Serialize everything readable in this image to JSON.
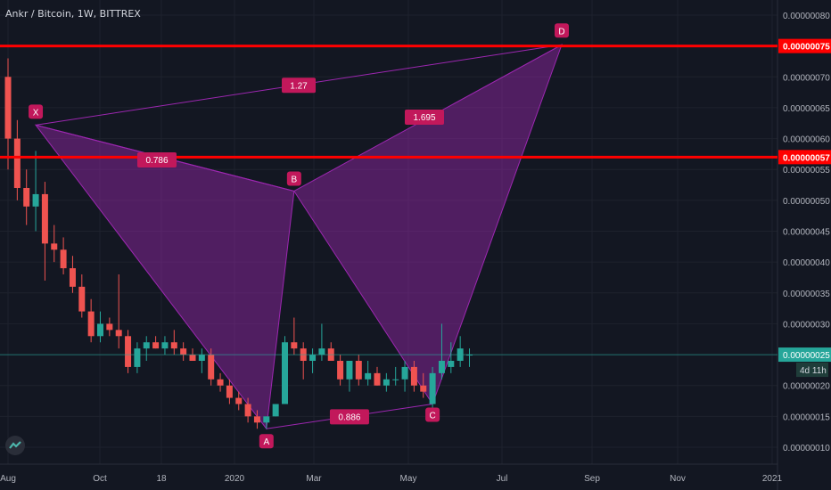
{
  "chart_data": {
    "type": "candlestick",
    "symbol_label": "Ankr / Bitcoin, 1W, BITTREX",
    "price_axis": {
      "ticks": [
        "0.00000080",
        "0.00000075",
        "0.00000070",
        "0.00000065",
        "0.00000060",
        "0.00000055",
        "0.00000050",
        "0.00000045",
        "0.00000040",
        "0.00000035",
        "0.00000030",
        "0.00000025",
        "0.00000020",
        "0.00000015",
        "0.00000010"
      ]
    },
    "time_axis": {
      "ticks": [
        "Aug",
        "Oct",
        "18",
        "2020",
        "Mar",
        "May",
        "Jul",
        "Sep",
        "Nov",
        "2021"
      ]
    },
    "horizontal_lines": [
      {
        "price": 7.5e-07,
        "label": "0.00000075",
        "color": "#ff0000"
      },
      {
        "price": 5.7e-07,
        "label": "0.00000057",
        "color": "#ff0000"
      }
    ],
    "current_price": {
      "price": 2.5e-07,
      "label": "0.00000025",
      "countdown": "4d 11h",
      "color": "#26a69a"
    },
    "pattern": {
      "color": "#9c27b0",
      "points": [
        {
          "name": "X",
          "bar": 3,
          "price": 6.22e-07
        },
        {
          "name": "A",
          "bar": 28,
          "price": 1.3e-07
        },
        {
          "name": "B",
          "bar": 31,
          "price": 5.15e-07
        },
        {
          "name": "C",
          "bar": 46,
          "price": 1.7e-07
        },
        {
          "name": "D",
          "bar": 60,
          "price": 7.52e-07
        }
      ],
      "ratios": [
        {
          "label": "0.786",
          "between": [
            "X",
            "B"
          ]
        },
        {
          "label": "1.27",
          "between": [
            "X",
            "D"
          ]
        },
        {
          "label": "1.695",
          "between": [
            "B",
            "D"
          ]
        },
        {
          "label": "0.886",
          "between": [
            "A",
            "C"
          ]
        }
      ]
    },
    "candles": [
      [
        7e-07,
        7.3e-07,
        5.5e-07,
        6e-07
      ],
      [
        6e-07,
        6.3e-07,
        5e-07,
        5.2e-07
      ],
      [
        5.2e-07,
        5.5e-07,
        4.6e-07,
        4.9e-07
      ],
      [
        4.9e-07,
        5.8e-07,
        4.5e-07,
        5.1e-07
      ],
      [
        5.1e-07,
        5.3e-07,
        3.7e-07,
        4.3e-07
      ],
      [
        4.3e-07,
        4.6e-07,
        4e-07,
        4.2e-07
      ],
      [
        4.2e-07,
        4.4e-07,
        3.8e-07,
        3.9e-07
      ],
      [
        3.9e-07,
        4.1e-07,
        3.5e-07,
        3.6e-07
      ],
      [
        3.6e-07,
        3.8e-07,
        3.1e-07,
        3.2e-07
      ],
      [
        3.2e-07,
        3.4e-07,
        2.7e-07,
        2.8e-07
      ],
      [
        2.8e-07,
        3.2e-07,
        2.7e-07,
        3e-07
      ],
      [
        3e-07,
        3.1e-07,
        2.8e-07,
        2.9e-07
      ],
      [
        2.9e-07,
        3.8e-07,
        2.6e-07,
        2.8e-07
      ],
      [
        2.8e-07,
        2.9e-07,
        2.2e-07,
        2.3e-07
      ],
      [
        2.3e-07,
        2.7e-07,
        2.2e-07,
        2.6e-07
      ],
      [
        2.6e-07,
        2.8e-07,
        2.4e-07,
        2.7e-07
      ],
      [
        2.7e-07,
        2.8e-07,
        2.6e-07,
        2.6e-07
      ],
      [
        2.6e-07,
        2.8e-07,
        2.5e-07,
        2.7e-07
      ],
      [
        2.7e-07,
        2.9e-07,
        2.5e-07,
        2.6e-07
      ],
      [
        2.6e-07,
        2.7e-07,
        2.4e-07,
        2.5e-07
      ],
      [
        2.5e-07,
        2.6e-07,
        2.4e-07,
        2.4e-07
      ],
      [
        2.4e-07,
        2.6e-07,
        2.2e-07,
        2.5e-07
      ],
      [
        2.5e-07,
        2.6e-07,
        2e-07,
        2.1e-07
      ],
      [
        2.1e-07,
        2.2e-07,
        1.9e-07,
        2e-07
      ],
      [
        2e-07,
        2.1e-07,
        1.7e-07,
        1.8e-07
      ],
      [
        1.8e-07,
        1.9e-07,
        1.6e-07,
        1.7e-07
      ],
      [
        1.7e-07,
        1.8e-07,
        1.4e-07,
        1.5e-07
      ],
      [
        1.5e-07,
        1.6e-07,
        1.3e-07,
        1.4e-07
      ],
      [
        1.4e-07,
        1.5e-07,
        1.3e-07,
        1.5e-07
      ],
      [
        1.5e-07,
        1.7e-07,
        1.5e-07,
        1.7e-07
      ],
      [
        1.7e-07,
        2.8e-07,
        1.7e-07,
        2.7e-07
      ],
      [
        2.7e-07,
        3.1e-07,
        2.5e-07,
        2.6e-07
      ],
      [
        2.6e-07,
        2.7e-07,
        2.1e-07,
        2.4e-07
      ],
      [
        2.4e-07,
        2.6e-07,
        2.2e-07,
        2.5e-07
      ],
      [
        2.5e-07,
        3e-07,
        2.4e-07,
        2.6e-07
      ],
      [
        2.6e-07,
        2.7e-07,
        2.4e-07,
        2.4e-07
      ],
      [
        2.4e-07,
        2.5e-07,
        2e-07,
        2.1e-07
      ],
      [
        2.1e-07,
        2.4e-07,
        1.9e-07,
        2.4e-07
      ],
      [
        2.4e-07,
        2.5e-07,
        2e-07,
        2.1e-07
      ],
      [
        2.1e-07,
        2.4e-07,
        2e-07,
        2.2e-07
      ],
      [
        2.2e-07,
        2.3e-07,
        2e-07,
        2e-07
      ],
      [
        2e-07,
        2.2e-07,
        1.9e-07,
        2.1e-07
      ],
      [
        2.1e-07,
        2.3e-07,
        2e-07,
        2.1e-07
      ],
      [
        2.1e-07,
        2.4e-07,
        1.9e-07,
        2.3e-07
      ],
      [
        2.3e-07,
        2.4e-07,
        1.9e-07,
        2e-07
      ],
      [
        2e-07,
        2.2e-07,
        1.8e-07,
        1.9e-07
      ],
      [
        1.7e-07,
        2.3e-07,
        1.6e-07,
        2.2e-07
      ],
      [
        2.2e-07,
        3e-07,
        2.1e-07,
        2.4e-07
      ],
      [
        2.3e-07,
        2.7e-07,
        2.2e-07,
        2.4e-07
      ],
      [
        2.4e-07,
        2.8e-07,
        2.3e-07,
        2.6e-07
      ],
      [
        2.5e-07,
        2.6e-07,
        2.3e-07,
        2.5e-07
      ]
    ],
    "colors": {
      "up": "#26a69a",
      "down": "#ef5350",
      "background": "#131722",
      "grid": "#1e222d",
      "axis_text": "#b2b5be",
      "pattern_label_bg": "#c2185b"
    }
  }
}
